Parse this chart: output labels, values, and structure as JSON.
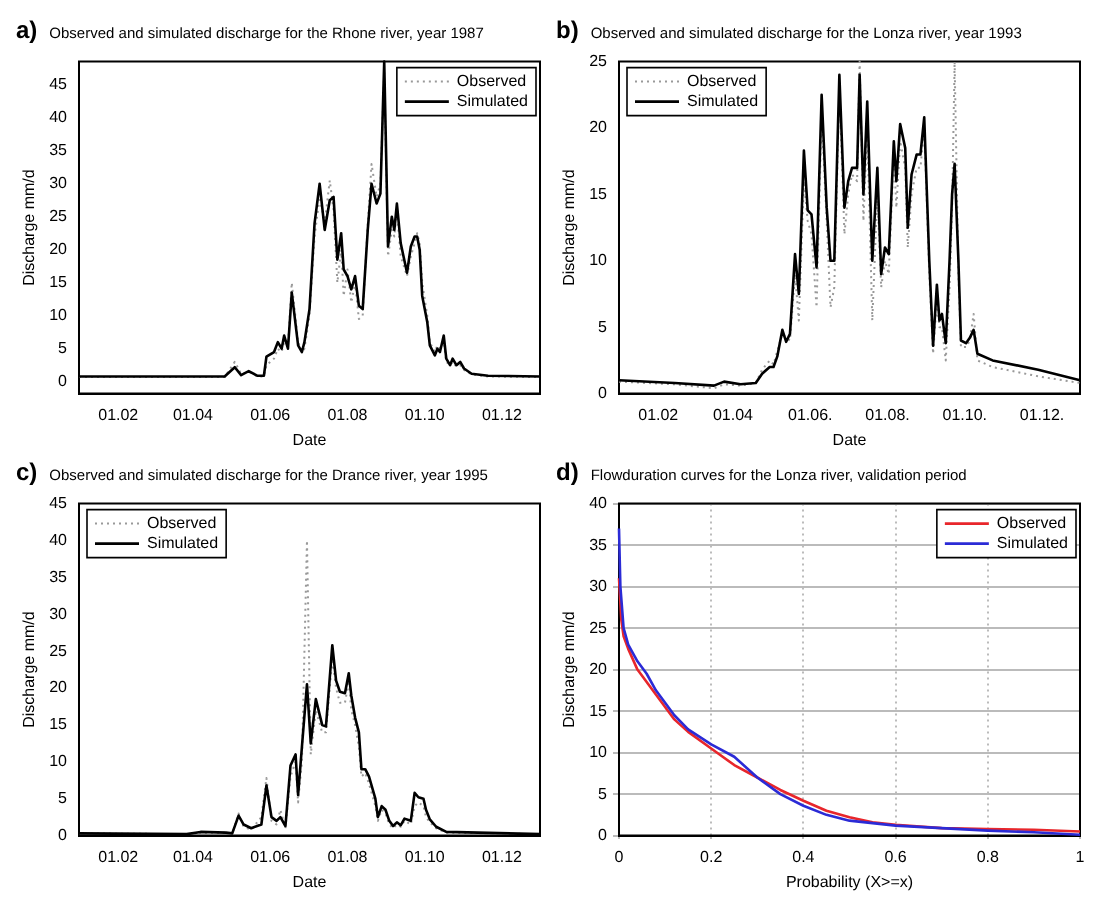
{
  "chart_data": [
    {
      "type": "line",
      "title": "Observed and simulated discharge for the Rhone river, year 1987",
      "annotations": [
        "a)"
      ],
      "xlabel": "Date",
      "ylabel": "Discharge mm/d",
      "legend": "top right",
      "grid": false,
      "xlim": [
        "1987-01-01",
        "1987-12-31"
      ],
      "xticks": [
        {
          "value": "1987-02-01",
          "label": "01.02"
        },
        {
          "value": "1987-04-01",
          "label": "01.04"
        },
        {
          "value": "1987-06-01",
          "label": "01.06"
        },
        {
          "value": "1987-08-01",
          "label": "01.08"
        },
        {
          "value": "1987-10-01",
          "label": "01.10"
        },
        {
          "value": "1987-12-01",
          "label": "01.12"
        }
      ],
      "ylim": [
        -1.8,
        48.5
      ],
      "yticks": [
        0,
        5,
        10,
        15,
        20,
        25,
        30,
        35,
        40,
        45
      ],
      "x": [
        "1987-01-01",
        "1987-04-26",
        "1987-05-04",
        "1987-05-09",
        "1987-05-15",
        "1987-05-22",
        "1987-05-27",
        "1987-05-29",
        "1987-06-04",
        "1987-06-07",
        "1987-06-10",
        "1987-06-12",
        "1987-06-15",
        "1987-06-18",
        "1987-06-23",
        "1987-06-26",
        "1987-06-28",
        "1987-07-02",
        "1987-07-06",
        "1987-07-10",
        "1987-07-14",
        "1987-07-18",
        "1987-07-21",
        "1987-07-24",
        "1987-07-27",
        "1987-07-29",
        "1987-08-01",
        "1987-08-04",
        "1987-08-07",
        "1987-08-10",
        "1987-08-13",
        "1987-08-17",
        "1987-08-20",
        "1987-08-24",
        "1987-08-27",
        "1987-08-30",
        "1987-09-02",
        "1987-09-05",
        "1987-09-07",
        "1987-09-09",
        "1987-09-12",
        "1987-09-17",
        "1987-09-20",
        "1987-09-23",
        "1987-09-25",
        "1987-09-27",
        "1987-09-29",
        "1987-10-03",
        "1987-10-05",
        "1987-10-09",
        "1987-10-11",
        "1987-10-13",
        "1987-10-16",
        "1987-10-18",
        "1987-10-21",
        "1987-10-23",
        "1987-10-26",
        "1987-10-29",
        "1987-11-01",
        "1987-11-07",
        "1987-11-20",
        "1987-12-31"
      ],
      "series": [
        {
          "name": "Observed",
          "color": "#999999",
          "line_style": "dotted",
          "values": [
            0.7,
            0.7,
            3.0,
            1.2,
            1.5,
            0.8,
            0.8,
            2.5,
            3.5,
            5.0,
            4.5,
            6.0,
            5.5,
            15,
            6,
            4.5,
            5,
            10,
            22,
            28,
            24,
            30.5,
            26,
            15,
            20,
            13,
            17,
            12,
            15,
            9.5,
            10,
            24,
            33,
            28,
            30,
            47,
            19,
            23,
            22,
            26,
            19,
            16,
            19,
            21,
            22.5,
            21,
            15,
            10,
            6,
            4.5,
            5.5,
            5,
            6,
            3,
            2.5,
            3,
            2.3,
            2.5,
            1.8,
            1.1,
            0.8,
            0.7
          ]
        },
        {
          "name": "Simulated",
          "color": "#000000",
          "line_style": "solid",
          "values": [
            0.8,
            0.8,
            2.2,
            1.0,
            1.6,
            0.9,
            0.9,
            3.8,
            4.5,
            6.0,
            5.0,
            7.0,
            5.0,
            13.5,
            5.5,
            4.5,
            6,
            11,
            24,
            30,
            23,
            27.5,
            28,
            18.5,
            22.5,
            17,
            16,
            14,
            16,
            11.5,
            11,
            23,
            30,
            27,
            28.5,
            48.5,
            20.5,
            25,
            23,
            27,
            21,
            16.5,
            20.5,
            22,
            22,
            20,
            13,
            9,
            5.5,
            4,
            5,
            4.5,
            7,
            3.5,
            2.5,
            3.5,
            2.5,
            3.0,
            2.0,
            1.2,
            0.9,
            0.8
          ]
        }
      ]
    },
    {
      "type": "line",
      "title": "Observed and simulated discharge for the Lonza river, year 1993",
      "annotations": [
        "b)"
      ],
      "xlabel": "Date",
      "ylabel": "Discharge mm/d",
      "legend": "top left",
      "grid": false,
      "xlim": [
        "1993-01-01",
        "1993-12-31"
      ],
      "xticks": [
        {
          "value": "1993-02-01",
          "label": "01.02"
        },
        {
          "value": "1993-04-01",
          "label": "01.04"
        },
        {
          "value": "1993-06-01",
          "label": "01.06."
        },
        {
          "value": "1993-08-01",
          "label": "01.08."
        },
        {
          "value": "1993-10-01",
          "label": "01.10."
        },
        {
          "value": "1993-12-01",
          "label": "01.12."
        }
      ],
      "ylim": [
        0,
        25
      ],
      "yticks": [
        0,
        5,
        10,
        15,
        20,
        25
      ],
      "x": [
        "1993-01-01",
        "1993-02-14",
        "1993-03-17",
        "1993-03-25",
        "1993-04-07",
        "1993-04-19",
        "1993-04-24",
        "1993-04-30",
        "1993-05-03",
        "1993-05-06",
        "1993-05-10",
        "1993-05-13",
        "1993-05-16",
        "1993-05-20",
        "1993-05-23",
        "1993-05-27",
        "1993-05-30",
        "1993-06-02",
        "1993-06-06",
        "1993-06-10",
        "1993-06-14",
        "1993-06-17",
        "1993-06-20",
        "1993-06-24",
        "1993-06-28",
        "1993-07-01",
        "1993-07-04",
        "1993-07-08",
        "1993-07-10",
        "1993-07-13",
        "1993-07-16",
        "1993-07-20",
        "1993-07-24",
        "1993-07-27",
        "1993-07-30",
        "1993-08-02",
        "1993-08-06",
        "1993-08-08",
        "1993-08-11",
        "1993-08-15",
        "1993-08-17",
        "1993-08-20",
        "1993-08-24",
        "1993-08-27",
        "1993-08-30",
        "1993-09-03",
        "1993-09-06",
        "1993-09-09",
        "1993-09-11",
        "1993-09-13",
        "1993-09-16",
        "1993-09-19",
        "1993-09-21",
        "1993-09-23",
        "1993-09-26",
        "1993-09-28",
        "1993-10-02",
        "1993-10-05",
        "1993-10-08",
        "1993-10-11",
        "1993-10-23",
        "1993-11-28",
        "1993-12-31"
      ],
      "series": [
        {
          "name": "Observed",
          "color": "#999999",
          "line_style": "dotted",
          "values": [
            0.9,
            0.7,
            0.4,
            0.7,
            0.6,
            0.8,
            1.8,
            2.5,
            2.2,
            3.2,
            4.5,
            4.2,
            4.0,
            9,
            5.5,
            16,
            13,
            12,
            6.5,
            21,
            13,
            6.5,
            8,
            23,
            12,
            15,
            16.5,
            16,
            25,
            13,
            20,
            5.5,
            15,
            8,
            10,
            9,
            18,
            14,
            19,
            17,
            11,
            15,
            17,
            17,
            20,
            9,
            3,
            7,
            5,
            5,
            2.5,
            8,
            14,
            25,
            9,
            3.5,
            3.5,
            4,
            6,
            2.5,
            2,
            1.3,
            0.8
          ]
        },
        {
          "name": "Simulated",
          "color": "#000000",
          "line_style": "solid",
          "values": [
            1.0,
            0.8,
            0.6,
            0.9,
            0.7,
            0.8,
            1.5,
            2.0,
            2.0,
            2.8,
            4.8,
            3.9,
            4.5,
            10.5,
            7.5,
            18.3,
            13.8,
            13.5,
            9.5,
            22.5,
            14,
            10,
            10,
            24,
            14,
            16,
            17,
            17,
            24,
            15,
            22,
            10,
            17,
            9,
            11,
            10.5,
            19,
            16,
            20.3,
            18.5,
            12.5,
            16.5,
            18,
            18,
            20.8,
            10,
            3.6,
            8.2,
            5.5,
            6,
            3.8,
            10,
            15,
            17.3,
            10,
            4,
            3.8,
            4.2,
            4.8,
            3.0,
            2.5,
            1.8,
            1.0
          ]
        }
      ]
    },
    {
      "type": "line",
      "title": "Observed and simulated discharge for the Drance river, year 1995",
      "annotations": [
        "c)"
      ],
      "xlabel": "Date",
      "ylabel": "Discharge mm/d",
      "legend": "top left",
      "grid": false,
      "xlim": [
        "1995-01-01",
        "1995-12-31"
      ],
      "xticks": [
        {
          "value": "1995-02-01",
          "label": "01.02"
        },
        {
          "value": "1995-04-01",
          "label": "01.04"
        },
        {
          "value": "1995-06-01",
          "label": "01.06"
        },
        {
          "value": "1995-08-01",
          "label": "01.08"
        },
        {
          "value": "1995-10-01",
          "label": "01.10"
        },
        {
          "value": "1995-12-01",
          "label": "01.12"
        }
      ],
      "ylim": [
        0,
        45
      ],
      "yticks": [
        0,
        5,
        10,
        15,
        20,
        25,
        30,
        35,
        40,
        45
      ],
      "x": [
        "1995-01-01",
        "1995-03-27",
        "1995-04-07",
        "1995-04-27",
        "1995-05-02",
        "1995-05-07",
        "1995-05-11",
        "1995-05-17",
        "1995-05-25",
        "1995-05-29",
        "1995-06-02",
        "1995-06-06",
        "1995-06-09",
        "1995-06-13",
        "1995-06-17",
        "1995-06-21",
        "1995-06-23",
        "1995-06-26",
        "1995-06-30",
        "1995-07-03",
        "1995-07-07",
        "1995-07-12",
        "1995-07-15",
        "1995-07-20",
        "1995-07-23",
        "1995-07-26",
        "1995-07-30",
        "1995-08-02",
        "1995-08-04",
        "1995-08-07",
        "1995-08-10",
        "1995-08-12",
        "1995-08-15",
        "1995-08-18",
        "1995-08-23",
        "1995-08-25",
        "1995-08-28",
        "1995-08-31",
        "1995-09-03",
        "1995-09-06",
        "1995-09-09",
        "1995-09-12",
        "1995-09-15",
        "1995-09-20",
        "1995-09-23",
        "1995-09-26",
        "1995-09-30",
        "1995-10-02",
        "1995-10-05",
        "1995-10-10",
        "1995-10-18",
        "1995-12-31"
      ],
      "series": [
        {
          "name": "Observed",
          "color": "#999999",
          "line_style": "dotted",
          "values": [
            0.3,
            0.2,
            0.4,
            0.4,
            0.3,
            3.0,
            1.2,
            0.8,
            2.5,
            7.8,
            2,
            1.5,
            3.5,
            1,
            8,
            10,
            4.5,
            10,
            40,
            11,
            17,
            14,
            14,
            24,
            20,
            18,
            18,
            21,
            17,
            15,
            12,
            8,
            8.5,
            7,
            4,
            2,
            3.5,
            3,
            1.5,
            1,
            1.5,
            1.2,
            2,
            1.5,
            4,
            4.5,
            4,
            2.5,
            1.8,
            1,
            0.4,
            0.2
          ]
        },
        {
          "name": "Simulated",
          "color": "#000000",
          "line_style": "solid",
          "values": [
            0.3,
            0.2,
            0.5,
            0.4,
            0.3,
            2.7,
            1.5,
            1.0,
            1.5,
            6.8,
            2.5,
            2.0,
            2.5,
            1.3,
            9.5,
            11,
            5.5,
            12,
            20.5,
            12.5,
            18.5,
            15,
            14.8,
            25.8,
            21,
            19.5,
            19.3,
            22,
            19,
            16,
            14,
            9,
            9,
            8,
            5,
            2.5,
            4,
            3.5,
            2,
            1.3,
            1.8,
            1.4,
            2.3,
            2.0,
            5.8,
            5.2,
            5,
            3.5,
            2.2,
            1.2,
            0.5,
            0.2
          ]
        }
      ]
    },
    {
      "type": "line",
      "title": "Flowduration curves for the Lonza river, validation period",
      "annotations": [
        "d)"
      ],
      "xlabel": "Probability (X>=x)",
      "ylabel": "Discharge mm/d",
      "legend": "top right",
      "grid": true,
      "xlim": [
        0,
        1
      ],
      "xticks": [
        0,
        0.2,
        0.4,
        0.6,
        0.8,
        1
      ],
      "ylim": [
        0,
        40
      ],
      "yticks": [
        0,
        5,
        10,
        15,
        20,
        25,
        30,
        35,
        40
      ],
      "series": [
        {
          "name": "Observed",
          "color": "#e8262b",
          "line_style": "solid",
          "x": [
            0,
            0.005,
            0.01,
            0.02,
            0.04,
            0.06,
            0.08,
            0.1,
            0.12,
            0.15,
            0.2,
            0.25,
            0.3,
            0.35,
            0.4,
            0.45,
            0.5,
            0.55,
            0.6,
            0.7,
            0.8,
            0.9,
            1
          ],
          "values": [
            31,
            26,
            24,
            22.5,
            20,
            18.5,
            17,
            15.5,
            14,
            12.5,
            10.5,
            8.5,
            7,
            5.5,
            4.2,
            3,
            2.2,
            1.6,
            1.3,
            0.9,
            0.8,
            0.7,
            0.5
          ]
        },
        {
          "name": "Simulated",
          "color": "#2b2bd6",
          "line_style": "solid",
          "x": [
            0,
            0.003,
            0.01,
            0.02,
            0.04,
            0.06,
            0.08,
            0.1,
            0.12,
            0.15,
            0.2,
            0.25,
            0.3,
            0.35,
            0.4,
            0.45,
            0.5,
            0.55,
            0.6,
            0.7,
            0.8,
            0.9,
            1
          ],
          "values": [
            37,
            30,
            25,
            23,
            21,
            19.5,
            17.5,
            16,
            14.5,
            12.8,
            11,
            9.5,
            7,
            5,
            3.6,
            2.5,
            1.8,
            1.5,
            1.2,
            0.9,
            0.6,
            0.4,
            0.1
          ]
        }
      ]
    }
  ]
}
